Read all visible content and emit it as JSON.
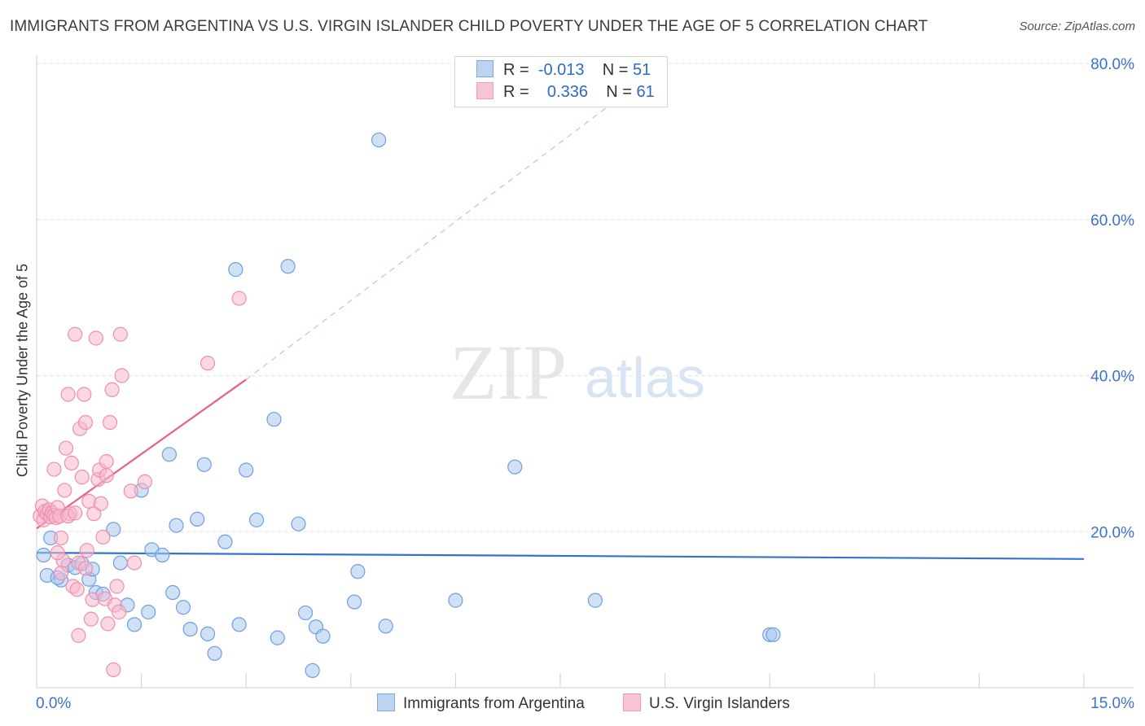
{
  "title": "IMMIGRANTS FROM ARGENTINA VS U.S. VIRGIN ISLANDER CHILD POVERTY UNDER THE AGE OF 5 CORRELATION CHART",
  "source": "Source: ZipAtlas.com",
  "watermark": {
    "zip": "ZIP",
    "atlas": "atlas"
  },
  "legend": {
    "rows": [
      {
        "r_label": "R =",
        "r_value": "-0.013",
        "n_label": "N =",
        "n_value": "51"
      },
      {
        "r_label": "R =",
        "r_value": "0.336",
        "n_label": "N =",
        "n_value": "61"
      }
    ]
  },
  "colors": {
    "blue_fill": "#a9c8ee",
    "blue_stroke": "#6f9fe0",
    "blue_line": "#2f74d0",
    "pink_fill": "#f7b8cb",
    "pink_stroke": "#ef8fae",
    "pink_line": "#e8608a",
    "tick_label": "#3b72c8"
  },
  "chart_data": {
    "type": "scatter",
    "title": "IMMIGRANTS FROM ARGENTINA VS U.S. VIRGIN ISLANDER CHILD POVERTY UNDER THE AGE OF 5 CORRELATION CHART",
    "xlabel": "",
    "ylabel": "Child Poverty Under the Age of 5",
    "xlim": [
      0,
      15
    ],
    "ylim": [
      0,
      80
    ],
    "x_tick_labels": [
      "0.0%",
      "15.0%"
    ],
    "y_ticks": [
      20,
      40,
      60,
      80
    ],
    "y_tick_labels": [
      "20.0%",
      "40.0%",
      "60.0%",
      "80.0%"
    ],
    "grid": true,
    "legend_position": "top-center",
    "series": [
      {
        "name": "Immigrants from Argentina",
        "R": -0.013,
        "N": 51,
        "trend": {
          "x": [
            0,
            15
          ],
          "y": [
            17.3,
            16.5
          ],
          "style": "solid"
        },
        "points": [
          [
            0.1,
            17.0
          ],
          [
            0.2,
            19.2
          ],
          [
            0.15,
            14.4
          ],
          [
            0.35,
            13.8
          ],
          [
            0.45,
            15.7
          ],
          [
            0.55,
            15.4
          ],
          [
            0.65,
            15.9
          ],
          [
            0.75,
            13.9
          ],
          [
            0.8,
            15.2
          ],
          [
            0.85,
            12.2
          ],
          [
            0.95,
            12.0
          ],
          [
            1.1,
            20.3
          ],
          [
            1.2,
            16.0
          ],
          [
            1.3,
            10.6
          ],
          [
            1.4,
            8.1
          ],
          [
            1.5,
            25.3
          ],
          [
            1.6,
            9.7
          ],
          [
            1.65,
            17.7
          ],
          [
            1.8,
            17.0
          ],
          [
            1.95,
            12.2
          ],
          [
            2.0,
            20.8
          ],
          [
            2.1,
            10.3
          ],
          [
            2.2,
            7.5
          ],
          [
            2.3,
            21.6
          ],
          [
            2.4,
            28.6
          ],
          [
            2.45,
            6.9
          ],
          [
            2.55,
            4.4
          ],
          [
            2.7,
            18.7
          ],
          [
            2.85,
            53.6
          ],
          [
            2.9,
            8.1
          ],
          [
            3.0,
            27.9
          ],
          [
            3.15,
            21.5
          ],
          [
            3.4,
            34.4
          ],
          [
            3.45,
            6.4
          ],
          [
            3.6,
            54.0
          ],
          [
            3.75,
            21.0
          ],
          [
            3.85,
            9.6
          ],
          [
            3.95,
            2.2
          ],
          [
            4.0,
            7.8
          ],
          [
            4.1,
            6.6
          ],
          [
            4.55,
            11.0
          ],
          [
            4.6,
            14.9
          ],
          [
            4.9,
            70.2
          ],
          [
            5.0,
            7.9
          ],
          [
            6.0,
            11.2
          ],
          [
            6.85,
            28.3
          ],
          [
            8.0,
            11.2
          ],
          [
            10.5,
            6.8
          ],
          [
            10.55,
            6.8
          ],
          [
            1.9,
            29.9
          ],
          [
            0.3,
            14.1
          ]
        ]
      },
      {
        "name": "U.S. Virgin Islanders",
        "R": 0.336,
        "N": 61,
        "trend": {
          "x": [
            0,
            3.0
          ],
          "y": [
            20.4,
            39.5
          ],
          "style": "solid",
          "extension": {
            "x": [
              3.0,
              9.0
            ],
            "y": [
              39.5,
              80.0
            ],
            "style": "dashed"
          }
        },
        "points": [
          [
            0.05,
            22.0
          ],
          [
            0.08,
            23.3
          ],
          [
            0.1,
            21.5
          ],
          [
            0.12,
            22.6
          ],
          [
            0.15,
            22.3
          ],
          [
            0.18,
            22.8
          ],
          [
            0.2,
            21.9
          ],
          [
            0.22,
            22.4
          ],
          [
            0.25,
            22.1
          ],
          [
            0.28,
            21.8
          ],
          [
            0.3,
            23.1
          ],
          [
            0.33,
            22.0
          ],
          [
            0.35,
            19.2
          ],
          [
            0.38,
            16.3
          ],
          [
            0.4,
            25.3
          ],
          [
            0.42,
            30.7
          ],
          [
            0.45,
            37.6
          ],
          [
            0.48,
            22.3
          ],
          [
            0.5,
            28.8
          ],
          [
            0.52,
            13.0
          ],
          [
            0.55,
            45.3
          ],
          [
            0.58,
            12.6
          ],
          [
            0.6,
            6.7
          ],
          [
            0.62,
            33.2
          ],
          [
            0.65,
            27.0
          ],
          [
            0.68,
            37.6
          ],
          [
            0.7,
            34.0
          ],
          [
            0.72,
            17.6
          ],
          [
            0.75,
            23.9
          ],
          [
            0.78,
            8.8
          ],
          [
            0.8,
            11.3
          ],
          [
            0.82,
            22.3
          ],
          [
            0.85,
            44.8
          ],
          [
            0.88,
            26.7
          ],
          [
            0.9,
            27.9
          ],
          [
            0.92,
            23.6
          ],
          [
            0.95,
            19.3
          ],
          [
            0.98,
            11.4
          ],
          [
            1.0,
            29.0
          ],
          [
            1.02,
            8.2
          ],
          [
            1.05,
            34.0
          ],
          [
            1.08,
            38.2
          ],
          [
            1.1,
            2.3
          ],
          [
            1.12,
            10.6
          ],
          [
            1.15,
            13.0
          ],
          [
            1.18,
            9.7
          ],
          [
            1.2,
            45.3
          ],
          [
            1.22,
            40.0
          ],
          [
            1.35,
            25.2
          ],
          [
            1.4,
            16.0
          ],
          [
            1.55,
            26.4
          ],
          [
            2.45,
            41.6
          ],
          [
            2.9,
            49.9
          ],
          [
            0.25,
            28.0
          ],
          [
            0.3,
            17.3
          ],
          [
            0.6,
            16.0
          ],
          [
            0.7,
            15.3
          ],
          [
            0.35,
            14.7
          ],
          [
            1.0,
            27.2
          ],
          [
            0.45,
            22.0
          ],
          [
            0.55,
            22.4
          ]
        ]
      }
    ]
  },
  "bottom_legend": {
    "items": [
      {
        "label": "Immigrants from Argentina"
      },
      {
        "label": "U.S. Virgin Islanders"
      }
    ]
  }
}
